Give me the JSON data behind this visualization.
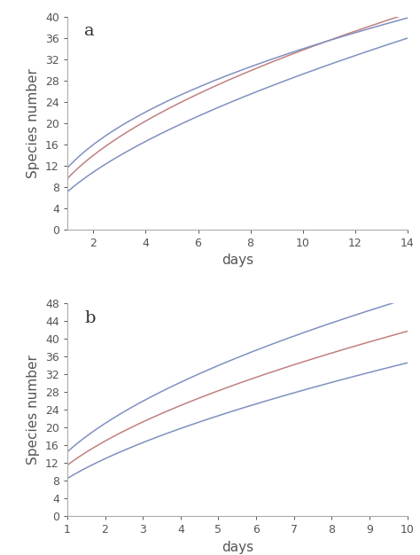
{
  "panel_a": {
    "label": "a",
    "xlabel": "days",
    "ylabel": "Species number",
    "xlim": [
      1,
      14
    ],
    "ylim": [
      0,
      40
    ],
    "yticks": [
      0,
      4,
      8,
      12,
      16,
      20,
      24,
      28,
      32,
      36,
      40
    ],
    "xticks": [
      2,
      4,
      6,
      8,
      10,
      12,
      14
    ],
    "curves": [
      {
        "c": 7.0,
        "p": 0.62,
        "color": "#8090c0",
        "lw": 1.1
      },
      {
        "c": 9.5,
        "p": 0.55,
        "color": "#c08080",
        "lw": 1.1
      },
      {
        "c": 11.5,
        "p": 0.47,
        "color": "#8090c0",
        "lw": 1.1
      }
    ]
  },
  "panel_b": {
    "label": "b",
    "xlabel": "days",
    "ylabel": "Species number",
    "xlim": [
      1,
      10
    ],
    "ylim": [
      0,
      48
    ],
    "yticks": [
      0,
      4,
      8,
      12,
      16,
      20,
      24,
      28,
      32,
      36,
      40,
      44,
      48
    ],
    "xticks": [
      1,
      2,
      3,
      4,
      5,
      6,
      7,
      8,
      9,
      10
    ],
    "curves": [
      {
        "c": 14.5,
        "p": 0.53,
        "color": "#8090c0",
        "lw": 1.1
      },
      {
        "c": 11.5,
        "p": 0.56,
        "color": "#c08080",
        "lw": 1.1
      },
      {
        "c": 8.5,
        "p": 0.61,
        "color": "#8090c0",
        "lw": 1.1
      }
    ]
  },
  "bg_color": "#ffffff",
  "spine_color": "#aaaaaa",
  "tick_color": "#555555",
  "label_fontsize": 11,
  "tick_fontsize": 9,
  "panel_label_fontsize": 14
}
